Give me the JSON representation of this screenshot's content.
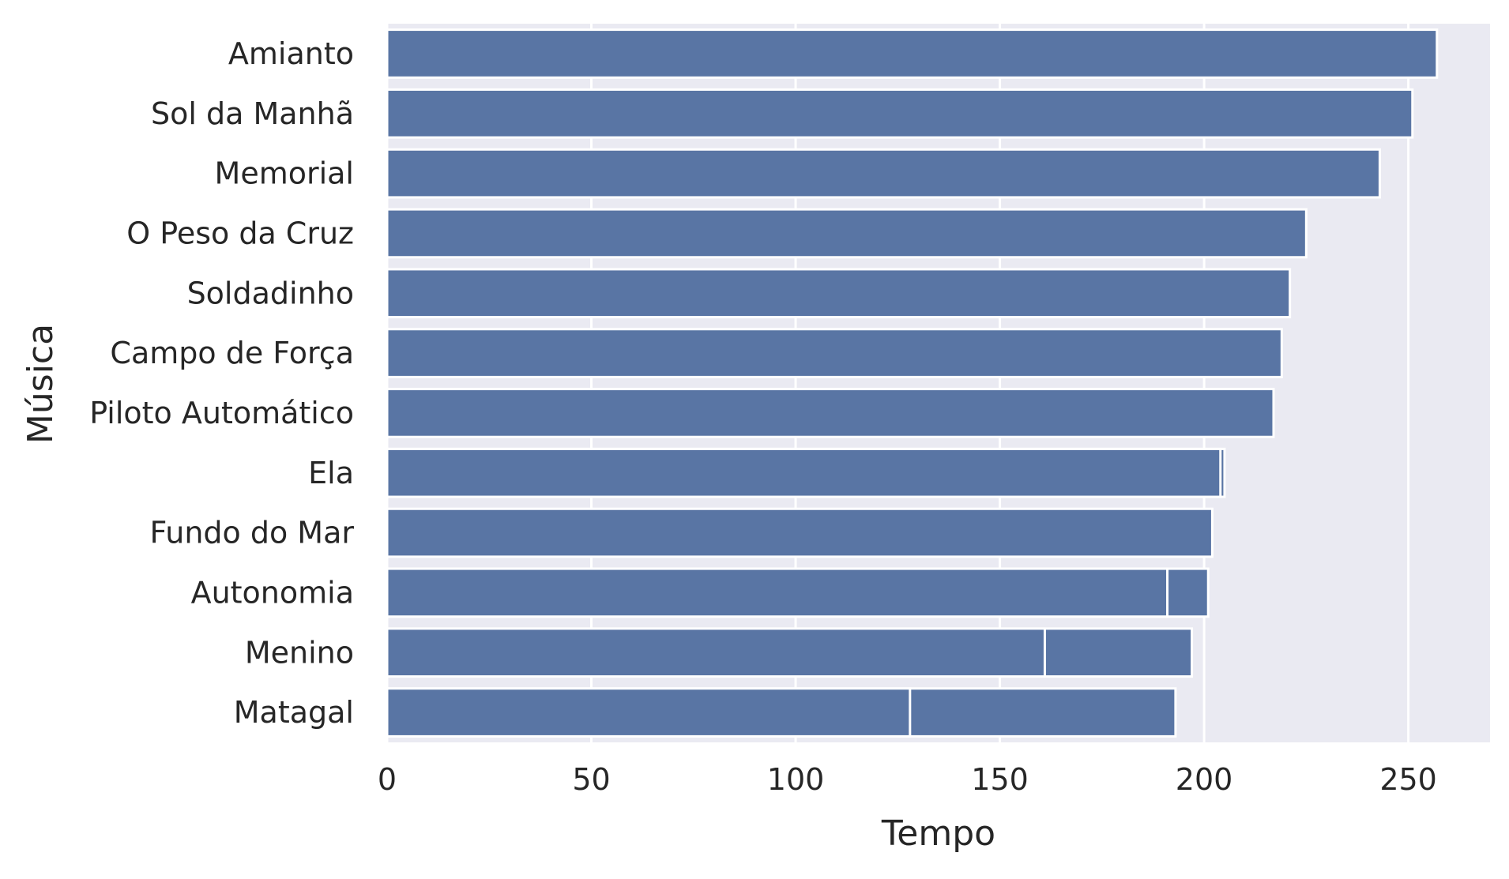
{
  "chart_data": {
    "type": "bar",
    "orientation": "horizontal",
    "xlabel": "Tempo",
    "ylabel": "Música",
    "xlim": [
      0,
      270
    ],
    "xticks": [
      0,
      50,
      100,
      150,
      200,
      250
    ],
    "grid": true,
    "categories": [
      "Amianto",
      "Sol da Manhã",
      "Memorial",
      "O Peso da Cruz",
      "Soldadinho",
      "Campo de Força",
      "Piloto Automático",
      "Ela",
      "Fundo do Mar",
      "Autonomia",
      "Menino",
      "Matagal"
    ],
    "series": [
      {
        "values": [
          257,
          251,
          243,
          225,
          221,
          219,
          217,
          205,
          202,
          201,
          197,
          193
        ]
      },
      {
        "values": [
          null,
          null,
          null,
          null,
          null,
          null,
          null,
          204,
          null,
          191,
          161,
          128
        ]
      }
    ],
    "colors": {
      "bar": "#5975a4",
      "plot_background": "#eaeaf2",
      "grid": "#ffffff",
      "text": "#262626"
    }
  }
}
